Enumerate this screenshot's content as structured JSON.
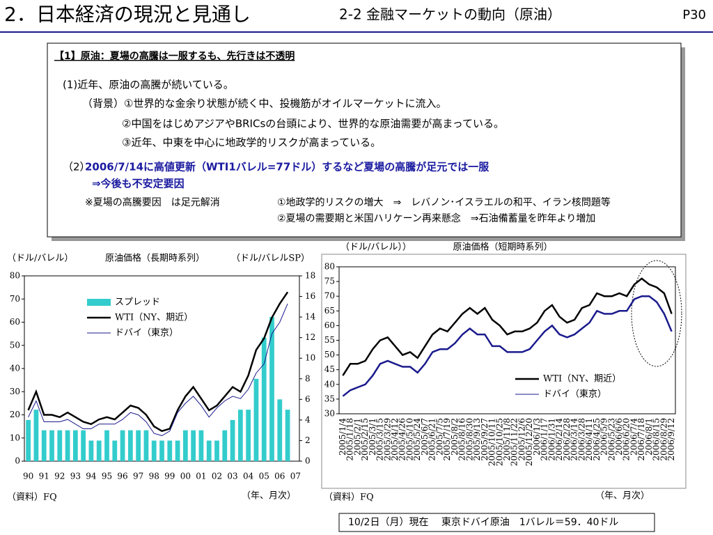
{
  "header": {
    "title": "2．日本経済の現況と見通し",
    "subtitle": "2-2  金融マーケットの動向（原油）",
    "page": "P30"
  },
  "box": {
    "heading": "【1】原油：夏場の高騰は一服するも、先行きは不透明",
    "lines": [
      "(1)近年、原油の高騰が続いている。",
      "（背景）①世界的な金余り状態が続く中、投機筋がオイルマーケットに流入。",
      "②中国をはじめアジアやBRICsの台頭により、世界的な原油需要が高まっている。",
      "③近年、中東を中心に地政学的リスクが高まっている。",
      "（2）",
      "2006/7/14に高値更新（WTI1バレル=77ドル）するなど夏場の高騰が足元では一服",
      "⇒今後も不安定要因",
      "※夏場の高騰要因　は足元解消",
      "①地政学的リスクの増大　⇒　レバノン･イスラエルの和平、イラン核問題等",
      "②夏場の需要期と米国ハリケーン再来懸念　⇒石油備蓄量を昨年より増加"
    ]
  },
  "chart_data": [
    {
      "type": "line",
      "title": "原油価格（長期時系列）",
      "ylabel": "（ドル/バレル）",
      "y2label": "（ドル/バレルSP）",
      "source": "（資料）FQ",
      "xlabel": "（年、月次）",
      "legend": "upper left",
      "categories": [
        "90",
        null,
        "91",
        null,
        "92",
        null,
        "93",
        null,
        "94",
        null,
        "95",
        null,
        "96",
        null,
        "97",
        null,
        "98",
        null,
        "99",
        null,
        "00",
        null,
        "01",
        null,
        "02",
        null,
        "03",
        null,
        "04",
        null,
        "05",
        null,
        "06",
        null,
        "07"
      ],
      "ylim": [
        0,
        80
      ],
      "yticks": [
        0,
        10,
        20,
        30,
        40,
        50,
        60,
        70,
        80
      ],
      "y2lim": [
        0,
        18
      ],
      "y2ticks": [
        0,
        2,
        4,
        6,
        8,
        10,
        12,
        14,
        16,
        18
      ],
      "series": [
        {
          "name": "スプレッド",
          "type": "bar",
          "axis": "y2",
          "color": "#33cccc",
          "values": [
            4,
            5,
            3,
            3,
            3,
            3,
            3,
            3,
            2,
            2,
            3,
            2,
            3,
            3,
            3,
            3,
            2,
            2,
            2,
            2,
            3,
            3,
            3,
            2,
            2,
            3,
            4,
            5,
            5,
            8,
            12,
            14,
            6,
            5,
            null
          ]
        },
        {
          "name": "WTI（NY、期近）",
          "type": "line",
          "color": "#000000",
          "values": [
            22,
            30,
            20,
            20,
            19,
            21,
            19,
            17,
            16,
            18,
            19,
            18,
            21,
            24,
            23,
            20,
            15,
            13,
            14,
            22,
            28,
            32,
            27,
            22,
            24,
            28,
            32,
            30,
            37,
            48,
            53,
            62,
            68,
            73,
            null
          ]
        },
        {
          "name": "ドバイ（東京）",
          "type": "line",
          "color": "#1a1a8c",
          "values": [
            19,
            26,
            17,
            17,
            17,
            18,
            16,
            14,
            14,
            16,
            16,
            16,
            18,
            21,
            20,
            17,
            12,
            11,
            13,
            21,
            25,
            28,
            24,
            19,
            23,
            26,
            28,
            27,
            31,
            38,
            42,
            55,
            60,
            68,
            null
          ]
        }
      ]
    },
    {
      "type": "line",
      "title": "原油価格（短期時系列）",
      "ylabel": "（ドル/バレル））",
      "source": "（資料）FQ",
      "xlabel": "（年、月次）",
      "legend": "lower right",
      "categories": [
        "2005/1/4",
        "2005/1/18",
        "2005/2/1",
        "2005/2/15",
        "2005/3/1",
        "2005/3/15",
        "2005/3/29",
        "2005/4/12",
        "2005/4/26",
        "2005/5/10",
        "2005/5/24",
        "2005/6/7",
        "2005/6/21",
        "2005/7/5",
        "2005/7/19",
        "2005/8/2",
        "2005/8/16",
        "2005/8/30",
        "2005/9/13",
        "2005/9/27",
        "2005/10/11",
        "2005/10/25",
        "2005/11/8",
        "2005/11/22",
        "2005/12/6",
        "2005/12/20",
        "2006/1/3",
        "2006/1/17",
        "2006/1/31",
        "2006/2/14",
        "2006/2/28",
        "2006/3/14",
        "2006/3/28",
        "2006/4/11",
        "2006/4/25",
        "2006/5/9",
        "2006/5/23",
        "2006/6/6",
        "2006/6/20",
        "2006/7/4",
        "2006/7/18",
        "2006/8/1",
        "2006/8/15",
        "2006/8/29",
        "2006/9/12"
      ],
      "ylim": [
        30,
        80
      ],
      "yticks": [
        30,
        35,
        40,
        45,
        50,
        55,
        60,
        65,
        70,
        75,
        80
      ],
      "series": [
        {
          "name": "WTI（NY、期近）",
          "type": "line",
          "color": "#000000",
          "values": [
            43,
            47,
            47,
            48,
            52,
            55,
            56,
            53,
            50,
            51,
            49,
            53,
            57,
            59,
            58,
            61,
            64,
            66,
            64,
            66,
            62,
            60,
            57,
            58,
            58,
            59,
            61,
            65,
            67,
            63,
            61,
            62,
            66,
            67,
            71,
            70,
            70,
            71,
            70,
            74,
            76,
            74,
            73,
            71,
            64
          ]
        },
        {
          "name": "ドバイ（東京）",
          "type": "line",
          "color": "#1a1a8c",
          "values": [
            36,
            38,
            39,
            40,
            43,
            47,
            48,
            47,
            46,
            46,
            44,
            47,
            51,
            52,
            52,
            54,
            57,
            59,
            57,
            57,
            53,
            53,
            51,
            51,
            51,
            52,
            55,
            58,
            60,
            57,
            56,
            57,
            59,
            61,
            65,
            64,
            64,
            65,
            65,
            69,
            70,
            70,
            68,
            64,
            58
          ]
        }
      ]
    }
  ],
  "note": "10/2日（月）現在　 東京ドバイ原油　1バレル＝59．40ドル"
}
